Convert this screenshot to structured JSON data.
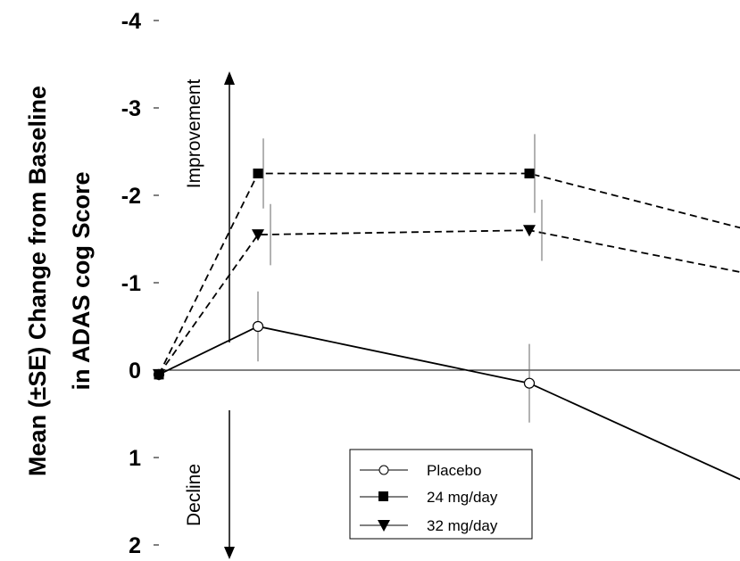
{
  "chart_data": {
    "type": "line",
    "ylabel_line1": "Mean (±SE) Change from Baseline",
    "ylabel_line2": "in ADAS cog Score",
    "ylim": [
      2,
      -4
    ],
    "y_inverted": true,
    "yticks": [
      "-4",
      "-3",
      "-2",
      "-1",
      "0",
      "1",
      "2"
    ],
    "ytick_values": [
      -4,
      -3,
      -2,
      -1,
      0,
      1,
      2
    ],
    "x": [
      0,
      1,
      2,
      3
    ],
    "annotations": {
      "up": "Improvement",
      "down": "Decline"
    },
    "series": [
      {
        "name": "Placebo",
        "marker": "circle-open",
        "dash": "solid",
        "values": [
          0.05,
          -0.5,
          0.15,
          1.3
        ],
        "se": [
          0,
          0.4,
          0.45,
          0
        ]
      },
      {
        "name": "24 mg/day",
        "marker": "square",
        "dash": "dashed",
        "values": [
          0.05,
          -2.25,
          -2.25,
          -1.6
        ],
        "se": [
          0,
          0.4,
          0.45,
          0
        ]
      },
      {
        "name": "32 mg/day",
        "marker": "triangle-down",
        "dash": "dashed",
        "values": [
          0.05,
          -1.55,
          -1.6,
          -1.1
        ],
        "se": [
          0,
          0.35,
          0.35,
          0
        ]
      }
    ],
    "grid": false,
    "legend_position": "bottom-center",
    "colors": {
      "line": "#000000"
    }
  }
}
